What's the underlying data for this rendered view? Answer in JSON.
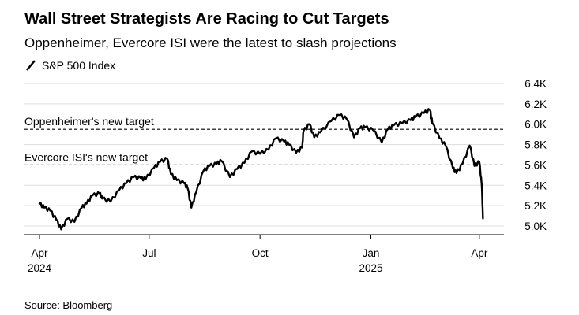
{
  "title": "Wall Street Strategists Are Racing to Cut Targets",
  "subtitle": "Oppenheimer, Evercore ISI were the latest to slash projections",
  "source": "Source: Bloomberg",
  "colors": {
    "series": "#000000",
    "grid": "#dddddd",
    "reference_line": "#000000"
  },
  "chart_data": {
    "type": "line",
    "title": "Wall Street Strategists Are Racing to Cut Targets",
    "subtitle": "Oppenheimer, Evercore ISI were the latest to slash projections",
    "xlabel": "",
    "ylabel": "",
    "y_tick_values": [
      5000,
      5200,
      5400,
      5600,
      5800,
      6000,
      6200,
      6400
    ],
    "y_tick_labels": [
      "5.0K",
      "5.2K",
      "5.4K",
      "5.6K",
      "5.8K",
      "6.0K",
      "6.2K",
      "6.4K"
    ],
    "ylim": [
      4940,
      6400
    ],
    "xlim": [
      "2024-04-01",
      "2025-04-07"
    ],
    "x_ticks": [
      {
        "date": "2024-04-01",
        "label": "Apr",
        "year": "2024"
      },
      {
        "date": "2024-07-01",
        "label": "Jul",
        "year": ""
      },
      {
        "date": "2024-10-01",
        "label": "Oct",
        "year": ""
      },
      {
        "date": "2025-01-01",
        "label": "Jan",
        "year": "2025"
      },
      {
        "date": "2025-04-01",
        "label": "Apr",
        "year": ""
      }
    ],
    "grid": true,
    "legend_position": "top-left",
    "reference_lines": [
      {
        "label": "Oppenheimer's new target",
        "value": 5950
      },
      {
        "label": "Evercore ISI's new target",
        "value": 5600
      }
    ],
    "series": [
      {
        "name": "S&P 500 Index",
        "x": [
          "2024-04-01",
          "2024-04-05",
          "2024-04-10",
          "2024-04-15",
          "2024-04-19",
          "2024-04-24",
          "2024-04-30",
          "2024-05-06",
          "2024-05-10",
          "2024-05-15",
          "2024-05-21",
          "2024-05-23",
          "2024-05-30",
          "2024-06-06",
          "2024-06-12",
          "2024-06-18",
          "2024-06-24",
          "2024-06-28",
          "2024-07-05",
          "2024-07-10",
          "2024-07-16",
          "2024-07-19",
          "2024-07-24",
          "2024-07-30",
          "2024-08-02",
          "2024-08-05",
          "2024-08-09",
          "2024-08-15",
          "2024-08-20",
          "2024-08-26",
          "2024-08-30",
          "2024-09-06",
          "2024-09-12",
          "2024-09-18",
          "2024-09-24",
          "2024-10-01",
          "2024-10-08",
          "2024-10-14",
          "2024-10-21",
          "2024-10-25",
          "2024-10-31",
          "2024-11-05",
          "2024-11-06",
          "2024-11-11",
          "2024-11-15",
          "2024-11-20",
          "2024-11-29",
          "2024-12-06",
          "2024-12-12",
          "2024-12-18",
          "2024-12-23",
          "2024-12-27",
          "2025-01-03",
          "2025-01-10",
          "2025-01-15",
          "2025-01-20",
          "2025-01-27",
          "2025-02-03",
          "2025-02-07",
          "2025-02-14",
          "2025-02-19",
          "2025-02-21",
          "2025-02-27",
          "2025-03-04",
          "2025-03-10",
          "2025-03-13",
          "2025-03-18",
          "2025-03-24",
          "2025-03-28",
          "2025-04-01",
          "2025-04-03",
          "2025-04-04"
        ],
        "values": [
          5220,
          5180,
          5150,
          5060,
          4967,
          5070,
          5040,
          5180,
          5220,
          5300,
          5320,
          5270,
          5240,
          5350,
          5420,
          5480,
          5470,
          5460,
          5570,
          5630,
          5660,
          5510,
          5450,
          5420,
          5370,
          5180,
          5330,
          5540,
          5590,
          5610,
          5640,
          5480,
          5560,
          5620,
          5730,
          5710,
          5750,
          5860,
          5830,
          5800,
          5720,
          5770,
          5930,
          6000,
          5870,
          5920,
          6030,
          6090,
          6050,
          5870,
          5960,
          5970,
          5940,
          5820,
          5950,
          5990,
          6010,
          6040,
          6070,
          6110,
          6140,
          6010,
          5860,
          5790,
          5570,
          5520,
          5610,
          5790,
          5590,
          5630,
          5400,
          5074
        ]
      }
    ]
  }
}
